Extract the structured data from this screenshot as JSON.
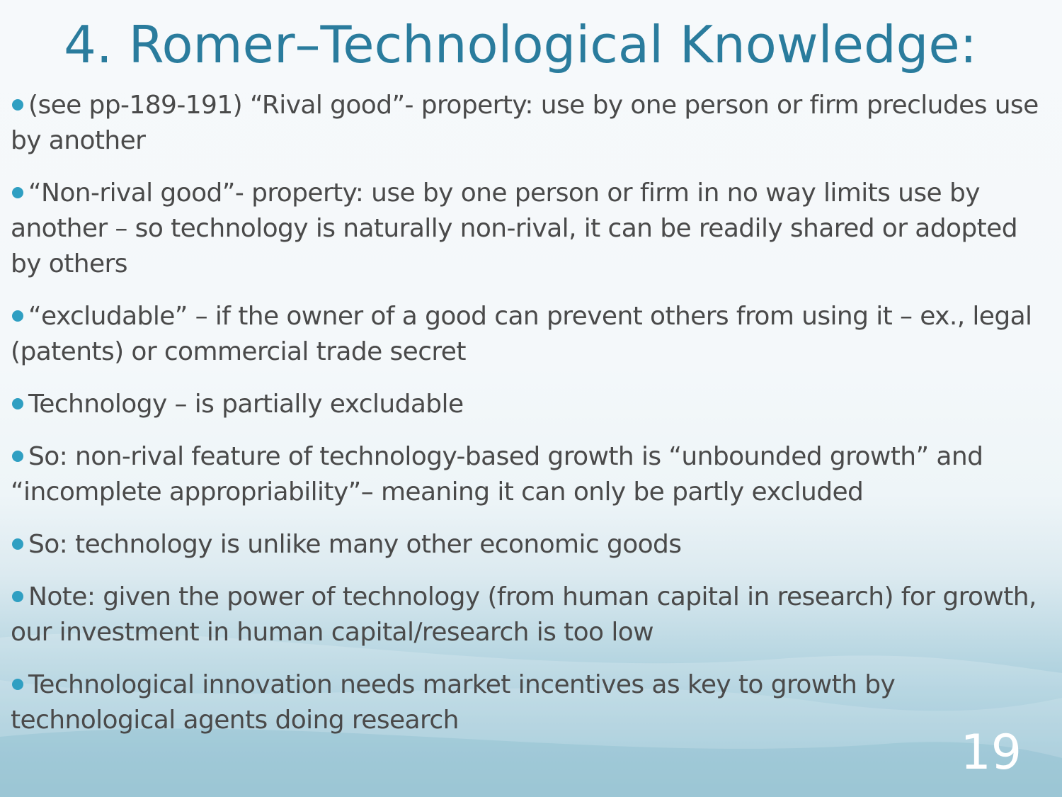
{
  "slide": {
    "title": "4. Romer–Technological Knowledge:",
    "bullets": [
      "(see pp-189-191) “Rival good”- property: use by one person or firm precludes use by another",
      "“Non-rival good”- property: use by one person or firm in no way limits use by another – so technology is naturally non-rival, it can be readily shared or adopted by others",
      "“excludable” – if the owner of a good can prevent others from using it – ex., legal (patents) or commercial trade secret",
      "Technology – is partially excludable",
      "So: non-rival feature of technology-based growth is “unbounded growth” and “incomplete appropriability”– meaning it can only be partly excluded",
      "So: technology is unlike many other economic goods",
      "Note: given the power of technology (from human capital in research) for growth, our investment in human capital/research is too low",
      "Technological innovation needs market incentives as key to growth by technological agents doing research"
    ],
    "page_number": "19",
    "colors": {
      "title": "#2a7c9d",
      "bullet_dot": "#2f9fc2",
      "text": "#4a4a4a",
      "page_number": "#ffffff"
    }
  }
}
